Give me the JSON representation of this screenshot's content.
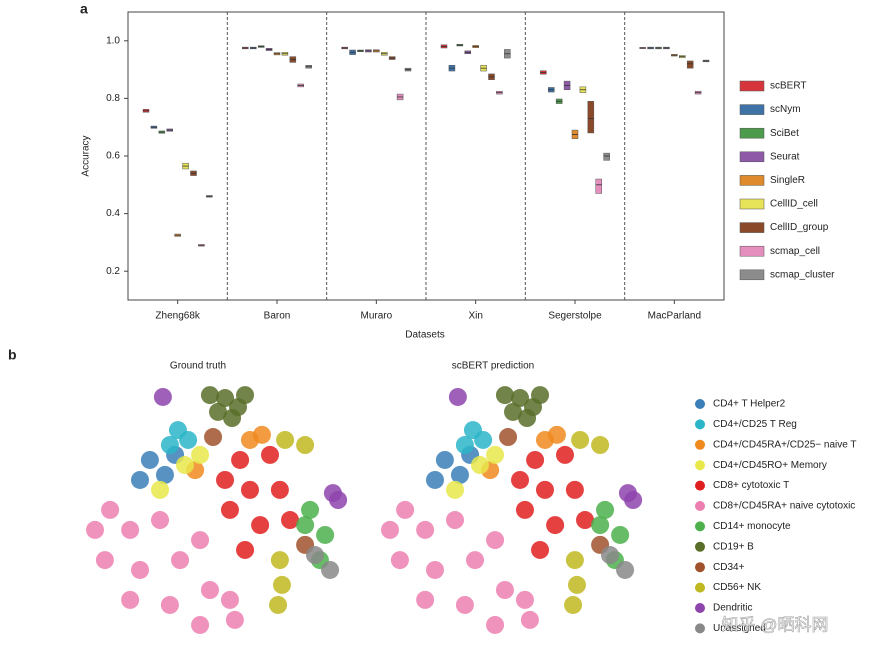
{
  "watermark": "知乎 @晒科网",
  "chart_data": [
    {
      "type": "box",
      "label": "a",
      "xlabel": "Datasets",
      "ylabel": "Accuracy",
      "categories": [
        "Zheng68k",
        "Baron",
        "Muraro",
        "Xin",
        "Segerstolpe",
        "MacParland"
      ],
      "ylim": [
        0.1,
        1.1
      ],
      "yticks": [
        0.2,
        0.4,
        0.6,
        0.8,
        {
          "value": 1,
          "label": "1.0"
        }
      ],
      "series": [
        {
          "name": "scBERT",
          "color": "#d6363b",
          "q1": [
            0.752,
            0.972,
            0.972,
            0.975,
            0.884,
            0.973
          ],
          "values": [
            0.757,
            0.975,
            0.975,
            0.98,
            0.89,
            0.975
          ],
          "q3": [
            0.762,
            0.978,
            0.978,
            0.986,
            0.896,
            0.977
          ]
        },
        {
          "name": "scNym",
          "color": "#3f73a8",
          "q1": [
            0.696,
            0.972,
            0.952,
            0.895,
            0.822,
            0.972
          ],
          "values": [
            0.7,
            0.975,
            0.96,
            0.905,
            0.83,
            0.975
          ],
          "q3": [
            0.704,
            0.978,
            0.968,
            0.915,
            0.838,
            0.978
          ]
        },
        {
          "name": "SciBet",
          "color": "#4c9a4c",
          "q1": [
            0.679,
            0.977,
            0.962,
            0.982,
            0.782,
            0.972
          ],
          "values": [
            0.683,
            0.98,
            0.965,
            0.985,
            0.79,
            0.975
          ],
          "q3": [
            0.687,
            0.983,
            0.968,
            0.988,
            0.798,
            0.978
          ]
        },
        {
          "name": "Seurat",
          "color": "#8e5aa8",
          "q1": [
            0.686,
            0.966,
            0.961,
            0.955,
            0.83,
            0.972
          ],
          "values": [
            0.69,
            0.97,
            0.965,
            0.96,
            0.845,
            0.975
          ],
          "q3": [
            0.694,
            0.974,
            0.969,
            0.965,
            0.86,
            0.978
          ]
        },
        {
          "name": "SingleR",
          "color": "#e08a2e",
          "q1": [
            0.321,
            0.951,
            0.961,
            0.976,
            0.66,
            0.947
          ],
          "values": [
            0.325,
            0.955,
            0.965,
            0.98,
            0.675,
            0.95
          ],
          "q3": [
            0.329,
            0.959,
            0.969,
            0.984,
            0.69,
            0.953
          ]
        },
        {
          "name": "CellID_cell",
          "color": "#e8e45a",
          "q1": [
            0.555,
            0.95,
            0.95,
            0.895,
            0.82,
            0.941
          ],
          "values": [
            0.565,
            0.955,
            0.955,
            0.905,
            0.83,
            0.945
          ],
          "q3": [
            0.575,
            0.96,
            0.96,
            0.915,
            0.84,
            0.949
          ]
        },
        {
          "name": "CellID_group",
          "color": "#8a4a2a",
          "q1": [
            0.532,
            0.925,
            0.935,
            0.865,
            0.68,
            0.905
          ],
          "values": [
            0.54,
            0.935,
            0.94,
            0.875,
            0.73,
            0.92
          ],
          "q3": [
            0.548,
            0.945,
            0.945,
            0.885,
            0.79,
            0.93
          ]
        },
        {
          "name": "scmap_cell",
          "color": "#e58fbf",
          "q1": [
            0.287,
            0.84,
            0.795,
            0.815,
            0.47,
            0.815
          ],
          "values": [
            0.29,
            0.845,
            0.805,
            0.82,
            0.5,
            0.82
          ],
          "q3": [
            0.293,
            0.85,
            0.815,
            0.825,
            0.52,
            0.825
          ]
        },
        {
          "name": "scmap_cluster",
          "color": "#8c8c8c",
          "q1": [
            0.457,
            0.905,
            0.895,
            0.94,
            0.585,
            0.927
          ],
          "values": [
            0.46,
            0.91,
            0.9,
            0.955,
            0.6,
            0.93
          ],
          "q3": [
            0.463,
            0.915,
            0.905,
            0.97,
            0.61,
            0.933
          ]
        }
      ]
    },
    {
      "type": "scatter",
      "label": "b",
      "panels": [
        "Ground truth",
        "scBERT prediction"
      ],
      "xlim": [
        0,
        100
      ],
      "ylim": [
        0,
        100
      ],
      "series": [
        {
          "name": "CD4+ T Helper2",
          "color": "#3a7fb8",
          "x": [
            23.8,
            29.6,
            20,
            33.5
          ],
          "y": [
            69.3,
            63.7,
            61.8,
            71.2
          ]
        },
        {
          "name": "CD4+/CD25 T Reg",
          "color": "#2bb5c8",
          "x": [
            34.6,
            38.5,
            31.5
          ],
          "y": [
            80.5,
            76.8,
            74.9
          ]
        },
        {
          "name": "CD4+/CD45RA+/CD25− naive T",
          "color": "#f08a1e",
          "x": [
            66.9,
            62.3,
            41.2
          ],
          "y": [
            78.7,
            76.8,
            65.5
          ]
        },
        {
          "name": "CD4+/CD45RO+ Memory",
          "color": "#e8e84a",
          "x": [
            37.3,
            27.7,
            43.1
          ],
          "y": [
            67.4,
            58.1,
            71.2
          ]
        },
        {
          "name": "CD8+ cytotoxic T",
          "color": "#e02020",
          "x": [
            58.5,
            70,
            62.3,
            73.8,
            54.6,
            66.2,
            77.7,
            60.4,
            52.7
          ],
          "y": [
            69.3,
            71.2,
            58.1,
            58.1,
            50.6,
            44.9,
            46.8,
            35.6,
            61.8
          ]
        },
        {
          "name": "CD8+/CD45RA+ naive cytotoxic",
          "color": "#ec7fb0",
          "x": [
            8.5,
            16.2,
            27.7,
            6.5,
            20,
            35.4,
            46.9,
            56.5,
            43.1,
            31.5,
            16.2,
            2.7,
            43.1,
            54.6
          ],
          "y": [
            50.6,
            43.1,
            46.8,
            31.8,
            28.1,
            31.8,
            20.6,
            9.4,
            7.5,
            15,
            16.9,
            43.1,
            39.3,
            16.9
          ]
        },
        {
          "name": "CD14+ monocyte",
          "color": "#4cb04c",
          "x": [
            85.4,
            91.2,
            89.2,
            83.5
          ],
          "y": [
            50.6,
            41.2,
            31.8,
            44.9
          ]
        },
        {
          "name": "CD19+ B",
          "color": "#5a6e2a",
          "x": [
            46.9,
            52.7,
            57.7,
            50,
            55.4,
            60.4
          ],
          "y": [
            93.6,
            92.5,
            89.1,
            87.3,
            85,
            93.6
          ]
        },
        {
          "name": "CD34+",
          "color": "#a0522d",
          "x": [
            48.1,
            83.5
          ],
          "y": [
            77.9,
            37.5
          ]
        },
        {
          "name": "CD56+ NK",
          "color": "#c0b820",
          "x": [
            75.8,
            83.5,
            73.8,
            74.6,
            73.1
          ],
          "y": [
            76.8,
            74.9,
            31.8,
            22.5,
            15
          ]
        },
        {
          "name": "Dendritic",
          "color": "#8e44ad",
          "x": [
            28.8,
            94.2,
            96.2
          ],
          "y": [
            92.9,
            56.9,
            54.3
          ]
        },
        {
          "name": "Unassigned",
          "color": "#888888",
          "x": [
            93.1,
            87.3
          ],
          "y": [
            28.1,
            33.7
          ]
        }
      ]
    }
  ]
}
